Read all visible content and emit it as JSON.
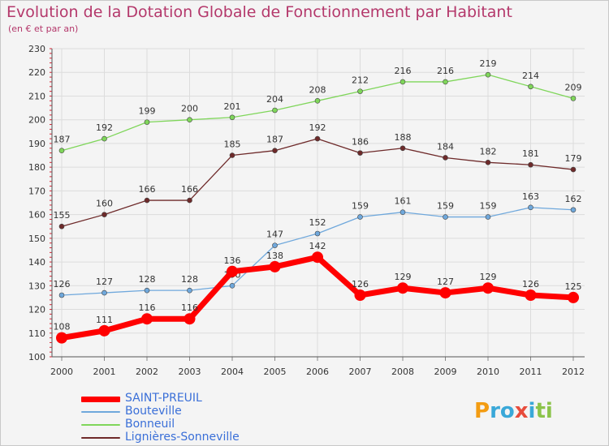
{
  "header": {
    "title": "Evolution de la Dotation Globale de Fonctionnement par Habitant",
    "subtitle": "(en € et par an)"
  },
  "logo": {
    "text": "Proxiti"
  },
  "colors": {
    "title": "#b4386b",
    "background": "#f4f4f4",
    "grid": "#dcdcdc",
    "axis_text": "#333333",
    "legend_text": "#3a6fd8"
  },
  "chart_data": {
    "type": "line",
    "title": "Evolution de la Dotation Globale de Fonctionnement par Habitant",
    "subtitle": "(en € et par an)",
    "xlabel": "",
    "ylabel": "",
    "ylim": [
      100,
      230
    ],
    "yticks": [
      100,
      110,
      120,
      130,
      140,
      150,
      160,
      170,
      180,
      190,
      200,
      210,
      220,
      230
    ],
    "grid": true,
    "legend_position": "bottom-left",
    "categories": [
      "2000",
      "2001",
      "2002",
      "2003",
      "2004",
      "2005",
      "2006",
      "2007",
      "2008",
      "2009",
      "2010",
      "2011",
      "2012"
    ],
    "series": [
      {
        "name": "Bonneuil",
        "color": "#7fd65a",
        "values": [
          187,
          192,
          199,
          200,
          201,
          204,
          208,
          212,
          216,
          216,
          219,
          214,
          209
        ]
      },
      {
        "name": "Lignières-Sonneville",
        "color": "#6e2a2a",
        "values": [
          155,
          160,
          166,
          166,
          185,
          187,
          192,
          186,
          188,
          184,
          182,
          181,
          179
        ]
      },
      {
        "name": "Bouteville",
        "color": "#6fa8dc",
        "values": [
          126,
          127,
          128,
          128,
          130,
          147,
          152,
          159,
          161,
          159,
          159,
          163,
          162
        ]
      },
      {
        "name": "SAINT-PREUIL",
        "color": "#ff0000",
        "values": [
          108,
          111,
          116,
          116,
          136,
          138,
          142,
          126,
          129,
          127,
          129,
          126,
          125
        ]
      }
    ]
  },
  "legend": [
    {
      "label": "SAINT-PREUIL",
      "color": "#ff0000"
    },
    {
      "label": "Bouteville",
      "color": "#6fa8dc"
    },
    {
      "label": "Bonneuil",
      "color": "#7fd65a"
    },
    {
      "label": "Lignières-Sonneville",
      "color": "#6e2a2a"
    }
  ]
}
